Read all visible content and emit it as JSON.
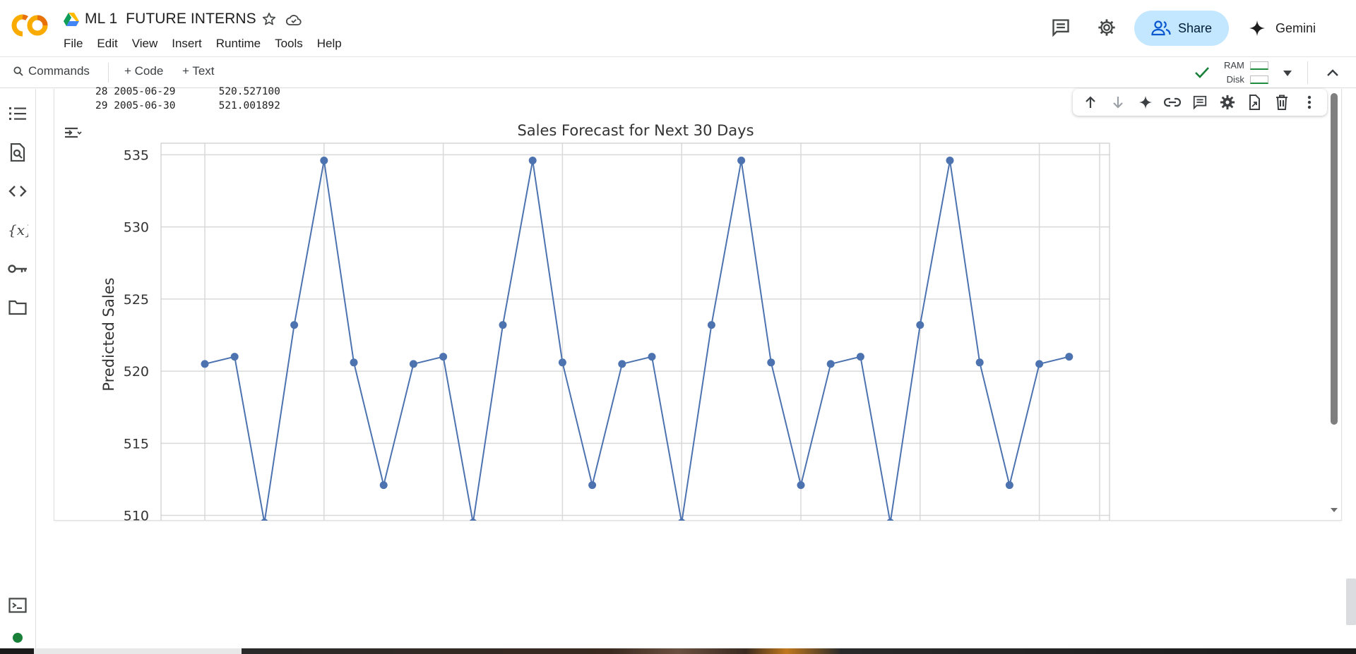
{
  "header": {
    "notebook_title": "ML 1  FUTURE INTERNS",
    "menu": [
      "File",
      "Edit",
      "View",
      "Insert",
      "Runtime",
      "Tools",
      "Help"
    ],
    "share_label": "Share",
    "gemini_label": "Gemini"
  },
  "toolbar": {
    "commands_label": "Commands",
    "add_code_label": "+ Code",
    "add_text_label": "+ Text",
    "ram_label": "RAM",
    "disk_label": "Disk"
  },
  "output": {
    "text_lines": [
      "28 2005-06-29       520.527100",
      "29 2005-06-30       521.001892"
    ]
  },
  "rail_icons": [
    "table-of-contents-icon",
    "find-replace-icon",
    "code-snippets-icon",
    "variables-icon",
    "secrets-key-icon",
    "files-folder-icon",
    "terminal-icon",
    "status-dot-icon"
  ],
  "colors": {
    "accent": "#4c72b0",
    "share_bg": "#c2e7ff",
    "status_green": "#188038"
  },
  "chart_data": {
    "type": "line",
    "title": "Sales Forecast for Next 30 Days",
    "ylabel": "Predicted Sales",
    "xlabel": "",
    "yticks": [
      510,
      515,
      520,
      525,
      530,
      535
    ],
    "ylim": [
      509.0,
      535.8
    ],
    "grid": true,
    "series": [
      {
        "values": [
          520.5,
          521.0,
          509.5,
          523.2,
          534.6,
          520.6,
          512.1,
          520.5,
          521.0,
          509.5,
          523.2,
          534.6,
          520.6,
          512.1,
          520.5,
          521.0,
          509.5,
          523.2,
          534.6,
          520.6,
          512.1,
          520.5,
          521.0,
          509.5,
          523.2,
          534.6,
          520.6,
          512.1,
          520.5,
          521.0
        ],
        "color": "#4c72b0"
      }
    ]
  }
}
